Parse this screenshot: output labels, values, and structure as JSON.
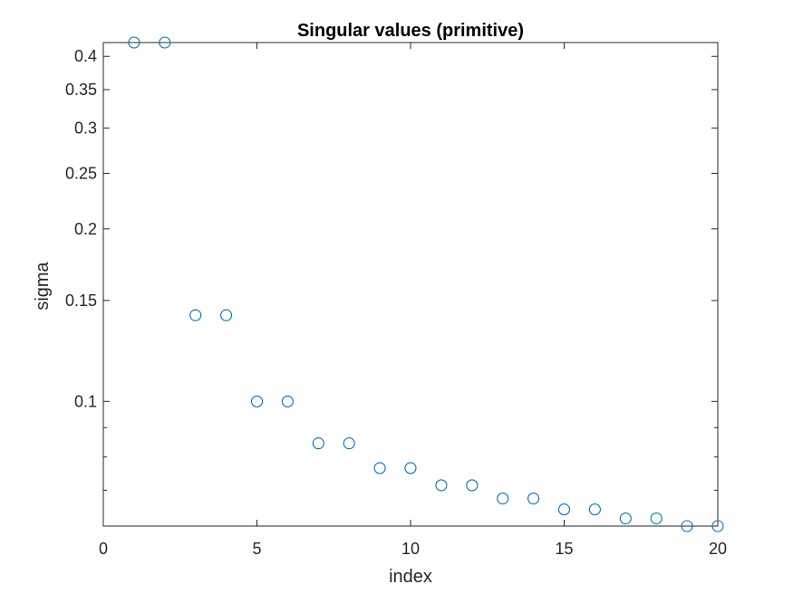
{
  "chart_data": {
    "type": "scatter",
    "title": "Singular values (primitive)",
    "xlabel": "index",
    "ylabel": "sigma",
    "x": [
      1,
      2,
      3,
      4,
      5,
      6,
      7,
      8,
      9,
      10,
      11,
      12,
      13,
      14,
      15,
      16,
      17,
      18,
      19,
      20
    ],
    "y": [
      0.4228,
      0.4228,
      0.1414,
      0.1414,
      0.1,
      0.1,
      0.0845,
      0.0845,
      0.0765,
      0.0765,
      0.0714,
      0.0714,
      0.0677,
      0.0677,
      0.0648,
      0.0648,
      0.0625,
      0.0625,
      0.0606,
      0.0606
    ],
    "xlim": [
      0,
      20
    ],
    "ylim": [
      0.0606,
      0.4228
    ],
    "yscale": "log",
    "xticks": [
      0,
      5,
      10,
      15,
      20
    ],
    "xtick_labels": [
      "0",
      "5",
      "10",
      "15",
      "20"
    ],
    "yticks": [
      0.1,
      0.15,
      0.2,
      0.25,
      0.3,
      0.35,
      0.4
    ],
    "ytick_labels": [
      "0.1",
      "0.15",
      "0.2",
      "0.25",
      "0.3",
      "0.35",
      "0.4"
    ],
    "yminor_ticks": [
      0.07,
      0.08,
      0.09
    ],
    "grid": false,
    "legend": "none",
    "marker": "open-circle",
    "marker_color": "#0072BD"
  }
}
